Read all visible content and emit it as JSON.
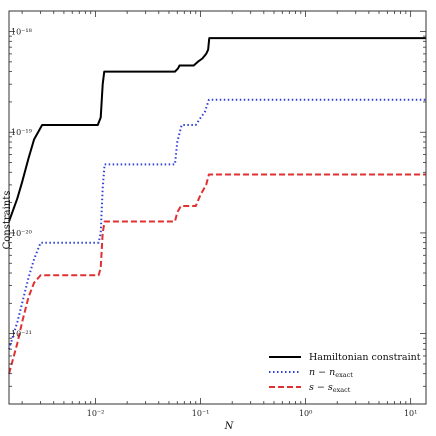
{
  "chart_data": {
    "type": "line",
    "xlabel": "N",
    "ylabel": "Constraints",
    "xscale": "log",
    "yscale": "log",
    "xlim": [
      0.0015,
      14
    ],
    "ylim": [
      2e-22,
      1.6e-18
    ],
    "x_ticks": [
      {
        "value": 0.01,
        "label": "10⁻²"
      },
      {
        "value": 0.1,
        "label": "10⁻¹"
      },
      {
        "value": 1,
        "label": "10⁰"
      },
      {
        "value": 10,
        "label": "10¹"
      }
    ],
    "y_ticks": [
      {
        "value": 1e-21,
        "label": "10⁻²¹"
      },
      {
        "value": 1e-20,
        "label": "10⁻²⁰"
      },
      {
        "value": 1e-19,
        "label": "10⁻¹⁹"
      },
      {
        "value": 1e-18,
        "label": "10⁻¹⁸"
      }
    ],
    "legend_position": "bottom-right",
    "series": [
      {
        "name": "Hamiltonian constraint",
        "color": "#000000",
        "dash": "solid",
        "points": [
          [
            0.0015,
            1.3e-20
          ],
          [
            0.0018,
            2.2e-20
          ],
          [
            0.002,
            3.2e-20
          ],
          [
            0.0023,
            5.5e-20
          ],
          [
            0.0026,
            8.5e-20
          ],
          [
            0.0031,
            1.18e-19
          ],
          [
            0.0105,
            1.18e-19
          ],
          [
            0.0112,
            1.4e-19
          ],
          [
            0.0117,
            3e-19
          ],
          [
            0.0121,
            4e-19
          ],
          [
            0.057,
            4e-19
          ],
          [
            0.061,
            4.3e-19
          ],
          [
            0.063,
            4.6e-19
          ],
          [
            0.086,
            4.6e-19
          ],
          [
            0.094,
            5e-19
          ],
          [
            0.104,
            5.4e-19
          ],
          [
            0.113,
            6e-19
          ],
          [
            0.118,
            6.6e-19
          ],
          [
            0.121,
            8.6e-19
          ],
          [
            14,
            8.6e-19
          ]
        ]
      },
      {
        "name": "n − n_exact",
        "color": "#2f3fd8",
        "dash": "dotted",
        "points": [
          [
            0.0015,
            7e-22
          ],
          [
            0.0018,
            1.3e-21
          ],
          [
            0.002,
            2e-21
          ],
          [
            0.0023,
            3.6e-21
          ],
          [
            0.0026,
            5.5e-21
          ],
          [
            0.003,
            8e-21
          ],
          [
            0.0107,
            8e-21
          ],
          [
            0.0112,
            1e-20
          ],
          [
            0.0117,
            2.8e-20
          ],
          [
            0.0122,
            4.8e-20
          ],
          [
            0.057,
            4.8e-20
          ],
          [
            0.06,
            8e-20
          ],
          [
            0.066,
            1.18e-19
          ],
          [
            0.09,
            1.18e-19
          ],
          [
            0.098,
            1.35e-19
          ],
          [
            0.11,
            1.6e-19
          ],
          [
            0.12,
            2.1e-19
          ],
          [
            14,
            2.1e-19
          ]
        ]
      },
      {
        "name": "s − s_exact",
        "color": "#e03030",
        "dash": "dashed",
        "points": [
          [
            0.0015,
            4e-22
          ],
          [
            0.0018,
            8e-22
          ],
          [
            0.002,
            1.3e-21
          ],
          [
            0.0023,
            2.3e-21
          ],
          [
            0.0026,
            3.2e-21
          ],
          [
            0.003,
            3.8e-21
          ],
          [
            0.0107,
            3.8e-21
          ],
          [
            0.0112,
            4.5e-21
          ],
          [
            0.0117,
            1e-20
          ],
          [
            0.0122,
            1.3e-20
          ],
          [
            0.057,
            1.3e-20
          ],
          [
            0.06,
            1.6e-20
          ],
          [
            0.065,
            1.85e-20
          ],
          [
            0.09,
            1.85e-20
          ],
          [
            0.1,
            2.4e-20
          ],
          [
            0.113,
            3e-20
          ],
          [
            0.12,
            3.8e-20
          ],
          [
            14,
            3.8e-20
          ]
        ]
      }
    ]
  },
  "legend": {
    "entries": [
      {
        "main": "Hamiltonian constraint",
        "sub": ""
      },
      {
        "main": "n − n",
        "sub": "exact"
      },
      {
        "main": "s − s",
        "sub": "exact"
      }
    ]
  }
}
